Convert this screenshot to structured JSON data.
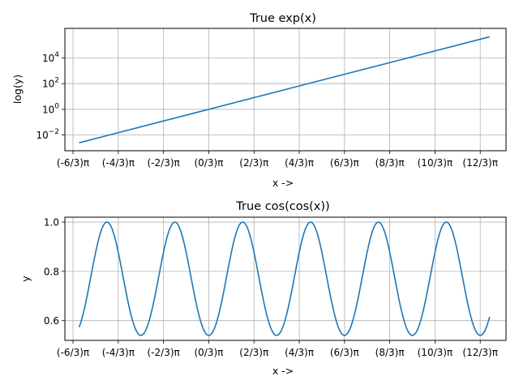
{
  "chart_data": [
    {
      "type": "line",
      "title": "True exp(x)",
      "xlabel": "x ->",
      "ylabel": "log(y)",
      "yscale": "log",
      "xlim": [
        -6.66,
        13.76
      ],
      "ylim": [
        0.0006,
        2000000
      ],
      "grid": true,
      "xticks": [
        {
          "value": -6.2832,
          "label": "(-6/3)π"
        },
        {
          "value": -4.1888,
          "label": "(-4/3)π"
        },
        {
          "value": -2.0944,
          "label": "(-2/3)π"
        },
        {
          "value": 0,
          "label": "(0/3)π"
        },
        {
          "value": 2.0944,
          "label": "(2/3)π"
        },
        {
          "value": 4.1888,
          "label": "(4/3)π"
        },
        {
          "value": 6.2832,
          "label": "(6/3)π"
        },
        {
          "value": 8.3776,
          "label": "(8/3)π"
        },
        {
          "value": 10.472,
          "label": "(10/3)π"
        },
        {
          "value": 12.5664,
          "label": "(12/3)π"
        }
      ],
      "yticks": [
        {
          "value": 0.01,
          "base": "10",
          "exp": "−2"
        },
        {
          "value": 1,
          "base": "10",
          "exp": "0"
        },
        {
          "value": 100,
          "base": "10",
          "exp": "2"
        },
        {
          "value": 10000,
          "base": "10",
          "exp": "4"
        }
      ],
      "series": [
        {
          "color": "#1f77b4",
          "points": [
            {
              "x": -6.0,
              "y": 0.0025
            },
            {
              "x": 13.0,
              "y": 440000
            }
          ]
        }
      ]
    },
    {
      "type": "line",
      "title": "True cos(cos(x))",
      "xlabel": "x ->",
      "ylabel": "y",
      "yscale": "linear",
      "xlim": [
        -6.66,
        13.76
      ],
      "ylim": [
        0.52,
        1.02
      ],
      "grid": true,
      "xticks": [
        {
          "value": -6.2832,
          "label": "(-6/3)π"
        },
        {
          "value": -4.1888,
          "label": "(-4/3)π"
        },
        {
          "value": -2.0944,
          "label": "(-2/3)π"
        },
        {
          "value": 0,
          "label": "(0/3)π"
        },
        {
          "value": 2.0944,
          "label": "(2/3)π"
        },
        {
          "value": 4.1888,
          "label": "(4/3)π"
        },
        {
          "value": 6.2832,
          "label": "(6/3)π"
        },
        {
          "value": 8.3776,
          "label": "(8/3)π"
        },
        {
          "value": 10.472,
          "label": "(10/3)π"
        },
        {
          "value": 12.5664,
          "label": "(12/3)π"
        }
      ],
      "yticks": [
        {
          "value": 0.6,
          "label": "0.6"
        },
        {
          "value": 0.8,
          "label": "0.8"
        },
        {
          "value": 1.0,
          "label": "1.0"
        }
      ],
      "series": [
        {
          "color": "#1f77b4",
          "function": "cos(cos(x))",
          "x_range": [
            -6.0,
            13.0
          ]
        }
      ]
    }
  ]
}
